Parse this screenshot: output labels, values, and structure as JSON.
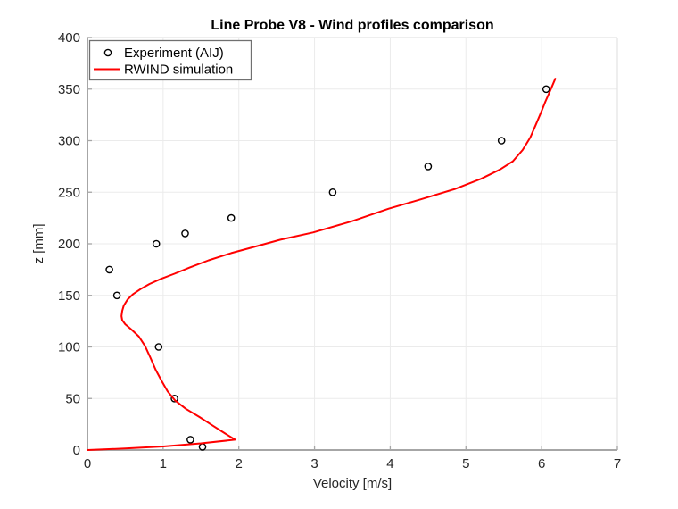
{
  "chart_data": {
    "type": "scatter",
    "title": "Line Probe V8 - Wind profiles comparison",
    "xlabel": "Velocity [m/s]",
    "ylabel": "z [mm]",
    "xlim": [
      0,
      7
    ],
    "ylim": [
      0,
      400
    ],
    "x_ticks": [
      0,
      1,
      2,
      3,
      4,
      5,
      6,
      7
    ],
    "y_ticks": [
      0,
      50,
      100,
      150,
      200,
      250,
      300,
      350,
      400
    ],
    "grid": true,
    "legend_position": "top-left",
    "series": [
      {
        "name": "Experiment (AIJ)",
        "type": "scatter",
        "marker": "open-circle",
        "color": "#000000",
        "points": [
          [
            1.52,
            3
          ],
          [
            1.36,
            10
          ],
          [
            1.15,
            50
          ],
          [
            0.94,
            100
          ],
          [
            0.39,
            150
          ],
          [
            0.29,
            175
          ],
          [
            0.91,
            200
          ],
          [
            1.29,
            210
          ],
          [
            1.9,
            225
          ],
          [
            3.24,
            250
          ],
          [
            4.5,
            275
          ],
          [
            5.47,
            300
          ],
          [
            6.06,
            350
          ]
        ]
      },
      {
        "name": "RWIND simulation",
        "type": "line",
        "color": "#FF0000",
        "points": [
          [
            0.0,
            0
          ],
          [
            0.5,
            1.5
          ],
          [
            1.0,
            3.5
          ],
          [
            1.5,
            6.5
          ],
          [
            1.95,
            10
          ],
          [
            1.82,
            16
          ],
          [
            1.65,
            24
          ],
          [
            1.48,
            32
          ],
          [
            1.3,
            40
          ],
          [
            1.16,
            48
          ],
          [
            1.06,
            57
          ],
          [
            0.98,
            67
          ],
          [
            0.9,
            78
          ],
          [
            0.83,
            90
          ],
          [
            0.76,
            101
          ],
          [
            0.68,
            110
          ],
          [
            0.58,
            117
          ],
          [
            0.5,
            122
          ],
          [
            0.46,
            126
          ],
          [
            0.45,
            130
          ],
          [
            0.46,
            135
          ],
          [
            0.48,
            140
          ],
          [
            0.53,
            146
          ],
          [
            0.6,
            151
          ],
          [
            0.7,
            156
          ],
          [
            0.82,
            161
          ],
          [
            0.97,
            166
          ],
          [
            1.15,
            171
          ],
          [
            1.35,
            177
          ],
          [
            1.6,
            184
          ],
          [
            1.9,
            191
          ],
          [
            2.2,
            197
          ],
          [
            2.55,
            204
          ],
          [
            2.98,
            211
          ],
          [
            3.5,
            222
          ],
          [
            3.98,
            234
          ],
          [
            4.4,
            243
          ],
          [
            4.85,
            253
          ],
          [
            5.2,
            263
          ],
          [
            5.45,
            272
          ],
          [
            5.62,
            280
          ],
          [
            5.75,
            291
          ],
          [
            5.85,
            303
          ],
          [
            5.92,
            315
          ],
          [
            5.99,
            327
          ],
          [
            6.05,
            338
          ],
          [
            6.11,
            348
          ],
          [
            6.18,
            360
          ]
        ]
      }
    ]
  },
  "style": {
    "background": "#FFFFFF",
    "line_red": "#FF0000",
    "marker_black": "#000000",
    "grid_color": "#EBEBEB",
    "axis_color": "#A6A6A6",
    "box_border_color": "#E3E3E3",
    "tick_text_color": "#262626",
    "legend_border_color": "#707070",
    "legend_background": "#FFFFFF"
  }
}
